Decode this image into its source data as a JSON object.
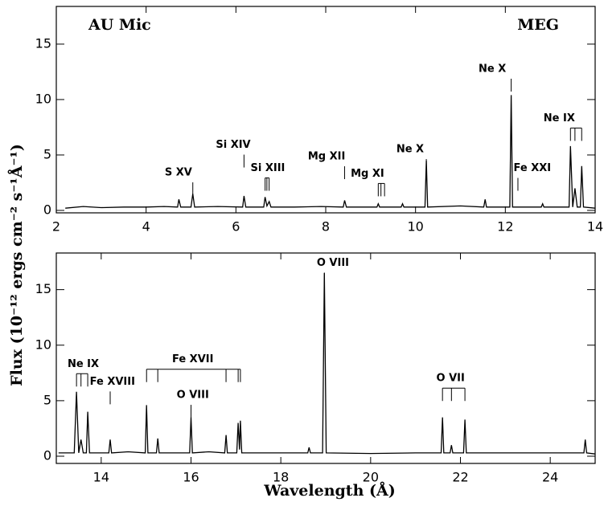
{
  "chart_data": [
    {
      "type": "line",
      "title": "AU Mic",
      "subtitle": "MEG",
      "y_label": "Flux (10⁻¹² ergs cm⁻² s⁻¹Å⁻¹)",
      "xlim": [
        2,
        14
      ],
      "ylim": [
        -0.22,
        18.4
      ],
      "xticks": [
        2,
        4,
        6,
        8,
        10,
        12,
        14
      ],
      "yticks": [
        0,
        5,
        10,
        15
      ],
      "x": [
        2.2,
        2.6,
        3.0,
        3.5,
        4.0,
        4.4,
        4.7,
        4.73,
        4.77,
        5.0,
        5.04,
        5.08,
        5.6,
        6.15,
        6.18,
        6.22,
        6.62,
        6.65,
        6.69,
        6.74,
        6.78,
        7.3,
        7.9,
        8.39,
        8.42,
        8.46,
        9.14,
        9.17,
        9.2,
        9.68,
        9.71,
        9.74,
        10.21,
        10.24,
        10.27,
        11.0,
        11.52,
        11.55,
        11.58,
        12.1,
        12.13,
        12.16,
        12.8,
        12.83,
        12.86,
        13.42,
        13.45,
        13.5,
        13.55,
        13.6,
        13.67,
        13.7,
        13.74,
        14.0
      ],
      "values": [
        0.2,
        0.35,
        0.25,
        0.3,
        0.3,
        0.35,
        0.3,
        1.0,
        0.3,
        0.3,
        1.5,
        0.3,
        0.35,
        0.3,
        1.3,
        0.3,
        0.3,
        1.2,
        0.4,
        0.8,
        0.3,
        0.3,
        0.35,
        0.3,
        0.9,
        0.3,
        0.3,
        0.6,
        0.3,
        0.3,
        0.6,
        0.3,
        0.3,
        4.5,
        0.3,
        0.4,
        0.3,
        1.0,
        0.3,
        0.3,
        10.4,
        0.3,
        0.3,
        0.6,
        0.3,
        0.3,
        5.8,
        0.3,
        2.0,
        0.3,
        0.3,
        4.0,
        0.3,
        0.2
      ],
      "annotations": [
        {
          "text": "S XV",
          "x": 4.72,
          "y": 3.4,
          "lines": [
            5.04
          ]
        },
        {
          "text": "Si XIV",
          "x": 5.94,
          "y": 5.9,
          "lines": [
            6.18
          ]
        },
        {
          "text": "Si XIII",
          "x": 6.71,
          "y": 3.8,
          "lines": [
            6.65,
            6.69,
            6.74
          ]
        },
        {
          "text": "Mg XII",
          "x": 8.02,
          "y": 4.85,
          "lines": [
            8.42
          ]
        },
        {
          "text": "Mg XI",
          "x": 8.93,
          "y": 3.3,
          "lines": [
            9.17,
            9.23,
            9.31
          ]
        },
        {
          "text": "Ne X",
          "x": 9.88,
          "y": 5.5,
          "lines": [
            10.24
          ]
        },
        {
          "text": "Ne X",
          "x": 11.71,
          "y": 12.75,
          "lines": [
            12.13
          ]
        },
        {
          "text": "Fe XXI",
          "x": 12.6,
          "y": 3.8,
          "lines": [
            12.28
          ]
        },
        {
          "text": "Ne IX",
          "x": 13.2,
          "y": 8.3,
          "lines": [
            13.45,
            13.55,
            13.7
          ]
        }
      ]
    },
    {
      "type": "line",
      "x_label": "Wavelength (Å)",
      "xlim": [
        13,
        25
      ],
      "ylim": [
        -0.65,
        18.3
      ],
      "xticks": [
        14,
        16,
        18,
        20,
        22,
        24
      ],
      "yticks": [
        0,
        5,
        10,
        15
      ],
      "x": [
        13.05,
        13.4,
        13.45,
        13.5,
        13.55,
        13.6,
        13.67,
        13.7,
        13.74,
        14.17,
        14.2,
        14.23,
        14.6,
        14.98,
        15.01,
        15.04,
        15.23,
        15.26,
        15.29,
        15.97,
        16.0,
        16.03,
        16.4,
        16.75,
        16.78,
        16.81,
        17.02,
        17.05,
        17.08,
        17.1,
        17.13,
        17.8,
        18.6,
        18.63,
        18.66,
        18.93,
        18.97,
        19.01,
        20.0,
        21.0,
        21.57,
        21.6,
        21.63,
        21.77,
        21.8,
        21.83,
        22.07,
        22.1,
        22.13,
        23.0,
        24.0,
        24.75,
        24.78,
        24.81,
        25.0
      ],
      "values": [
        0.3,
        0.3,
        5.8,
        0.3,
        1.5,
        0.3,
        0.3,
        4.0,
        0.3,
        0.3,
        1.5,
        0.3,
        0.4,
        0.3,
        4.6,
        0.3,
        0.3,
        1.6,
        0.3,
        0.3,
        3.5,
        0.3,
        0.4,
        0.3,
        1.9,
        0.3,
        0.3,
        3.0,
        0.6,
        3.2,
        0.3,
        0.3,
        0.3,
        0.8,
        0.3,
        0.3,
        16.5,
        0.3,
        0.25,
        0.3,
        0.3,
        3.5,
        0.3,
        0.3,
        1.0,
        0.3,
        0.3,
        3.3,
        0.3,
        0.3,
        0.3,
        0.3,
        1.5,
        0.3,
        0.2
      ],
      "annotations": [
        {
          "text": "Ne IX",
          "x": 13.6,
          "y": 8.3,
          "lines": [
            13.45,
            13.55,
            13.7
          ]
        },
        {
          "text": "Fe XVIII",
          "x": 14.25,
          "y": 6.7,
          "lines": [
            14.2
          ]
        },
        {
          "text": "Fe XVII",
          "x": 16.04,
          "y": 8.7,
          "lines": [
            15.01,
            15.26,
            16.78,
            17.05,
            17.1
          ]
        },
        {
          "text": "O VIII",
          "x": 16.04,
          "y": 5.5,
          "lines": [
            16.0
          ]
        },
        {
          "text": "O VIII",
          "x": 19.16,
          "y": 17.4,
          "lines": [
            18.97
          ]
        },
        {
          "text": "O VII",
          "x": 21.78,
          "y": 7.0,
          "lines": [
            21.6,
            21.8,
            22.1
          ]
        }
      ]
    }
  ]
}
